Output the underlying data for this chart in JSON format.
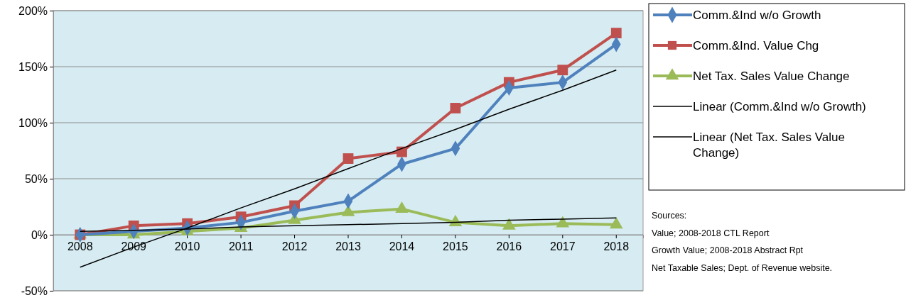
{
  "chart_data": {
    "type": "line",
    "categories": [
      "2008",
      "2009",
      "2010",
      "2011",
      "2012",
      "2013",
      "2014",
      "2015",
      "2016",
      "2017",
      "2018"
    ],
    "series": [
      {
        "name": "Comm.&Ind w/o Growth",
        "color": "#4f81bd",
        "marker": "diamond",
        "values": [
          0,
          3,
          6,
          11,
          21,
          30,
          63,
          77,
          131,
          136,
          170
        ]
      },
      {
        "name": "Comm.&Ind. Value Chg",
        "color": "#c0504d",
        "marker": "square",
        "values": [
          0,
          8,
          10,
          16,
          26,
          68,
          74,
          113,
          136,
          147,
          180
        ]
      },
      {
        "name": "Net Tax. Sales Value Change",
        "color": "#9bbb59",
        "marker": "triangle",
        "values": [
          0,
          0,
          3,
          6,
          13,
          20,
          23,
          11,
          8,
          10,
          9
        ]
      },
      {
        "name": "Linear (Comm.&Ind w/o Growth)",
        "color": "#000000",
        "marker": "none",
        "values": [
          -29,
          -11,
          6,
          24,
          41,
          59,
          77,
          94,
          112,
          129,
          147
        ]
      },
      {
        "name": "Linear (Net Tax. Sales Value Change)",
        "color": "#000000",
        "marker": "none",
        "values": [
          3,
          4,
          5,
          7,
          8,
          9,
          10,
          11,
          13,
          14,
          15
        ]
      }
    ],
    "ylim": [
      -50,
      200
    ],
    "yticks": [
      {
        "value": -50,
        "label": "-50%"
      },
      {
        "value": 0,
        "label": "0%"
      },
      {
        "value": 50,
        "label": "50%"
      },
      {
        "value": 100,
        "label": "100%"
      },
      {
        "value": 150,
        "label": "150%"
      },
      {
        "value": 200,
        "label": "200%"
      }
    ],
    "grid": "y",
    "legend": "right",
    "line_style": "solid",
    "annotations": [
      "Sources:",
      "Value; 2008-2018 CTL Report",
      "Growth Value; 2008-2018  Abstract Rpt",
      "Net Taxable Sales; Dept. of Revenue website."
    ]
  }
}
